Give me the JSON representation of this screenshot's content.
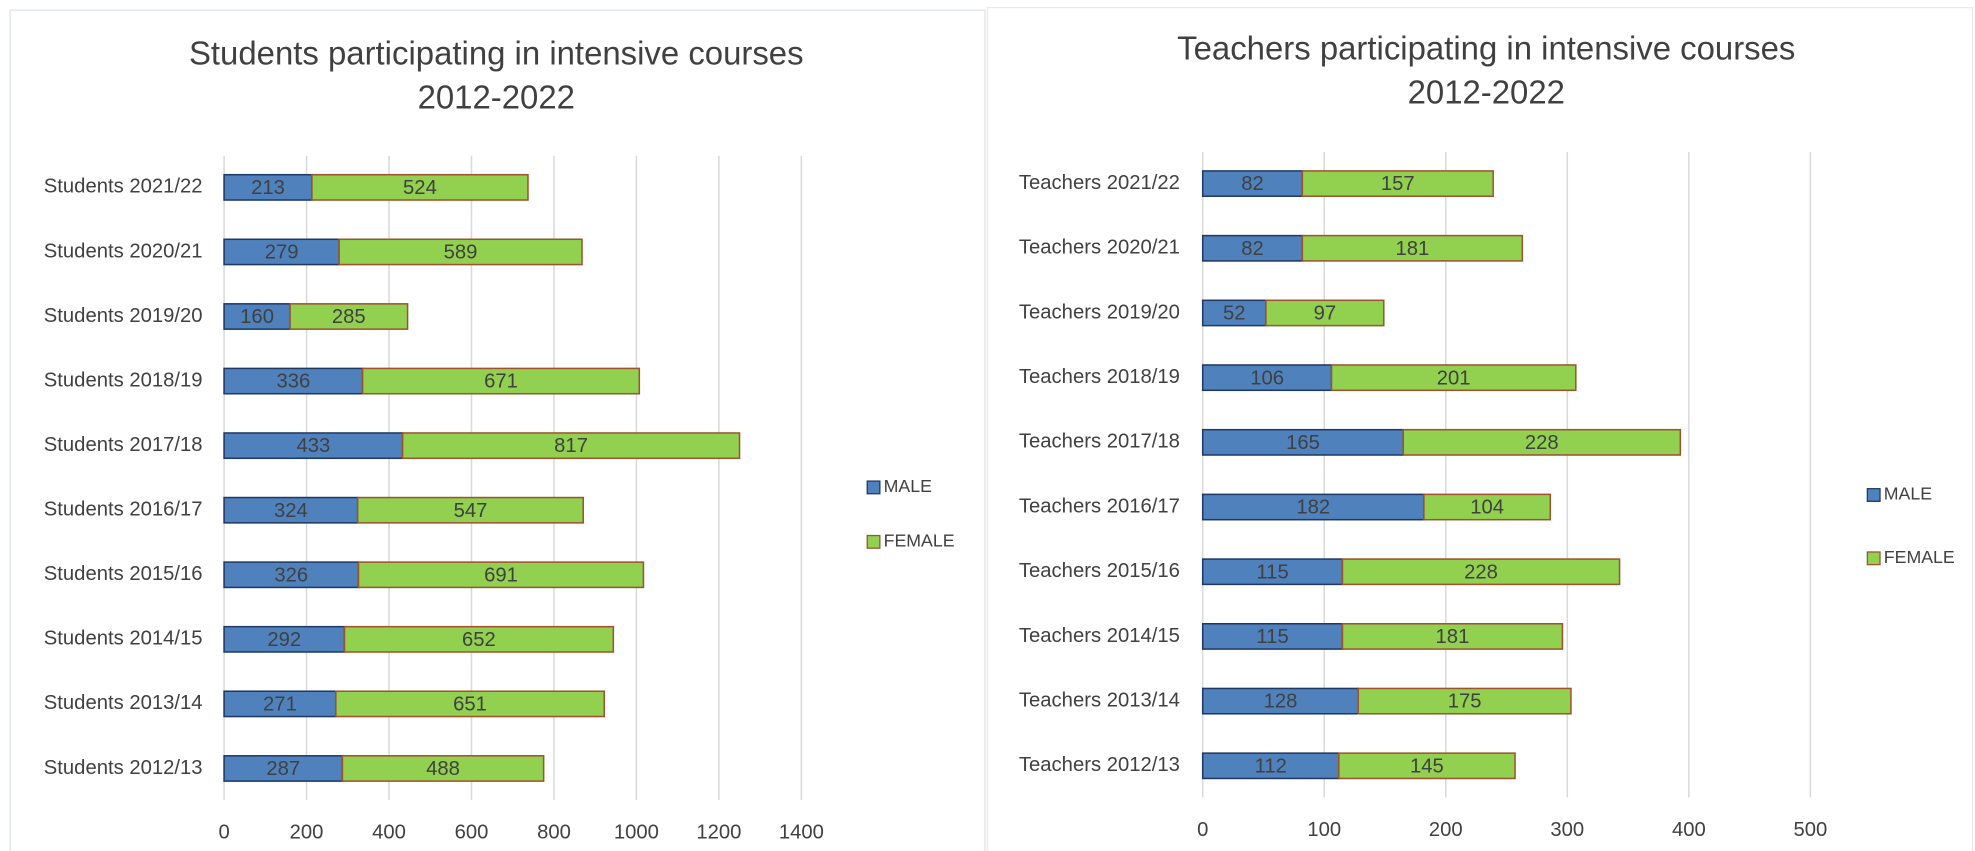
{
  "chart_data": [
    {
      "type": "stacked_bar_horizontal",
      "title": [
        "Students participating in intensive courses",
        "2012-2022"
      ],
      "categories": [
        "Students 2021/22",
        "Students 2020/21",
        "Students 2019/20",
        "Students 2018/19",
        "Students 2017/18",
        "Students 2016/17",
        "Students 2015/16",
        "Students 2014/15",
        "Students 2013/14",
        "Students 2012/13"
      ],
      "series": [
        {
          "name": "MALE",
          "color": "#4f81bd",
          "values": [
            213,
            279,
            160,
            336,
            433,
            324,
            326,
            292,
            271,
            287
          ]
        },
        {
          "name": "FEMALE",
          "color": "#92d050",
          "values": [
            524,
            589,
            285,
            671,
            817,
            547,
            691,
            652,
            651,
            488
          ]
        }
      ],
      "xlim": [
        0,
        1400
      ],
      "xticks": [
        0,
        200,
        400,
        600,
        800,
        1000,
        1200,
        1400
      ],
      "grid": true,
      "legend": "right"
    },
    {
      "type": "stacked_bar_horizontal",
      "title": [
        "Teachers participating in intensive courses",
        "2012-2022"
      ],
      "categories": [
        "Teachers 2021/22",
        "Teachers 2020/21",
        "Teachers 2019/20",
        "Teachers 2018/19",
        "Teachers 2017/18",
        "Teachers 2016/17",
        "Teachers 2015/16",
        "Teachers 2014/15",
        "Teachers 2013/14",
        "Teachers 2012/13"
      ],
      "series": [
        {
          "name": "MALE",
          "color": "#4f81bd",
          "values": [
            82,
            82,
            52,
            106,
            165,
            182,
            115,
            115,
            128,
            112
          ]
        },
        {
          "name": "FEMALE",
          "color": "#92d050",
          "values": [
            157,
            181,
            97,
            201,
            228,
            104,
            228,
            181,
            175,
            145
          ]
        }
      ],
      "xlim": [
        0,
        500
      ],
      "xticks": [
        0,
        100,
        200,
        300,
        400,
        500
      ],
      "grid": true,
      "legend": "right"
    }
  ]
}
